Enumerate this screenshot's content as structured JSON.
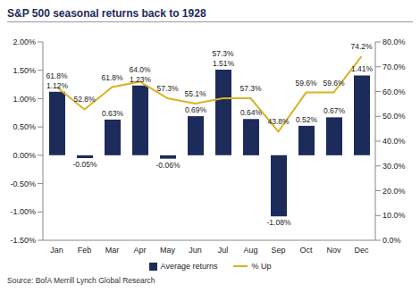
{
  "chart_data": {
    "type": "bar",
    "title": "S&P 500 seasonal returns back to 1928",
    "source": "Source: BofA Merrill Lynch Global Research",
    "categories": [
      "Jan",
      "Feb",
      "Mar",
      "Apr",
      "May",
      "Jun",
      "Jul",
      "Aug",
      "Sep",
      "Oct",
      "Nov",
      "Dec"
    ],
    "series": [
      {
        "name": "Average returns",
        "type": "bar",
        "color": "#1c2b5a",
        "values": [
          1.12,
          -0.05,
          0.63,
          1.23,
          -0.06,
          0.69,
          1.51,
          0.64,
          -1.08,
          0.52,
          0.67,
          1.41
        ],
        "value_labels": [
          "1.12%",
          "-0.05%",
          "0.63%",
          "1.23%",
          "-0.06%",
          "0.69%",
          "1.51%",
          "0.64%",
          "-1.08%",
          "0.52%",
          "0.67%",
          "1.41%"
        ]
      },
      {
        "name": "% Up",
        "type": "line",
        "axis": "y2",
        "color": "#d8b323",
        "values": [
          61.8,
          52.8,
          61.8,
          64.0,
          57.3,
          55.1,
          57.3,
          57.3,
          43.8,
          59.6,
          59.6,
          74.2
        ],
        "value_labels": [
          "61.8%",
          "52.8%",
          "61.8%",
          "64.0%",
          "57.3%",
          "55.1%",
          "57.3%",
          "57.3%",
          "43.8%",
          "59.6%",
          "59.6%",
          "74.2%"
        ]
      }
    ],
    "ylim": [
      -1.5,
      2.0
    ],
    "yticks": [
      {
        "value": -1.5,
        "label": "-1.50%"
      },
      {
        "value": -1.0,
        "label": "-1.00%"
      },
      {
        "value": -0.5,
        "label": "-0.50%"
      },
      {
        "value": 0,
        "label": "0.00%"
      },
      {
        "value": 0.5,
        "label": "0.50%"
      },
      {
        "value": 1.0,
        "label": "1.00%"
      },
      {
        "value": 1.5,
        "label": "1.50%"
      },
      {
        "value": 2.0,
        "label": "2.00%"
      }
    ],
    "y2lim": [
      0,
      80
    ],
    "y2ticks": [
      {
        "value": 0,
        "label": "0.0%"
      },
      {
        "value": 10,
        "label": "10.0%"
      },
      {
        "value": 20,
        "label": "20.0%"
      },
      {
        "value": 30,
        "label": "30.0%"
      },
      {
        "value": 40,
        "label": "40.0%"
      },
      {
        "value": 50,
        "label": "50.0%"
      },
      {
        "value": 60,
        "label": "60.0%"
      },
      {
        "value": 70,
        "label": "70.0%"
      },
      {
        "value": 80,
        "label": "80.0%"
      }
    ],
    "data_labels": true,
    "legend": "bottom",
    "grid": false
  }
}
